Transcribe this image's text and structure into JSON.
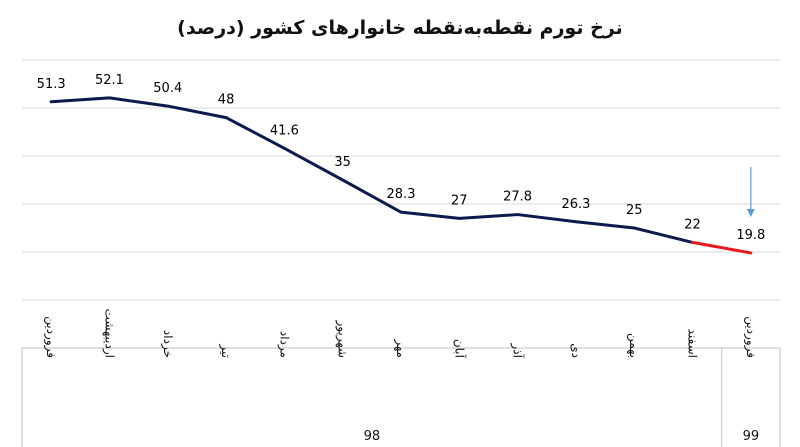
{
  "chart_data": {
    "type": "line",
    "title": "نرخ تورم نقطه‌به‌نقطه خانوارهای کشور (درصد)",
    "xlabel": "",
    "ylabel": "",
    "ylim": [
      0,
      60
    ],
    "grid": true,
    "categories": [
      "فروردین",
      "اردیبهشت",
      "خرداد",
      "تیر",
      "مرداد",
      "شهریور",
      "مهر",
      "آبان",
      "آذر",
      "دی",
      "بهمن",
      "اسفند",
      "فروردین"
    ],
    "values": [
      51.3,
      52.1,
      50.4,
      48,
      41.6,
      35,
      28.3,
      27,
      27.8,
      26.3,
      25,
      22,
      19.8
    ],
    "data_labels": [
      "51.3",
      "52.1",
      "50.4",
      "48",
      "41.6",
      "35",
      "28.3",
      "27",
      "27.8",
      "26.3",
      "25",
      "22",
      "19.8"
    ],
    "year_groups": [
      {
        "label": "98",
        "span": 12
      },
      {
        "label": "99",
        "span": 1
      }
    ],
    "line_color": "#0d1a4f",
    "highlight_color": "#e8191e",
    "arrow_color": "#5b9bd5",
    "grid_color": "#d9d9d9"
  }
}
